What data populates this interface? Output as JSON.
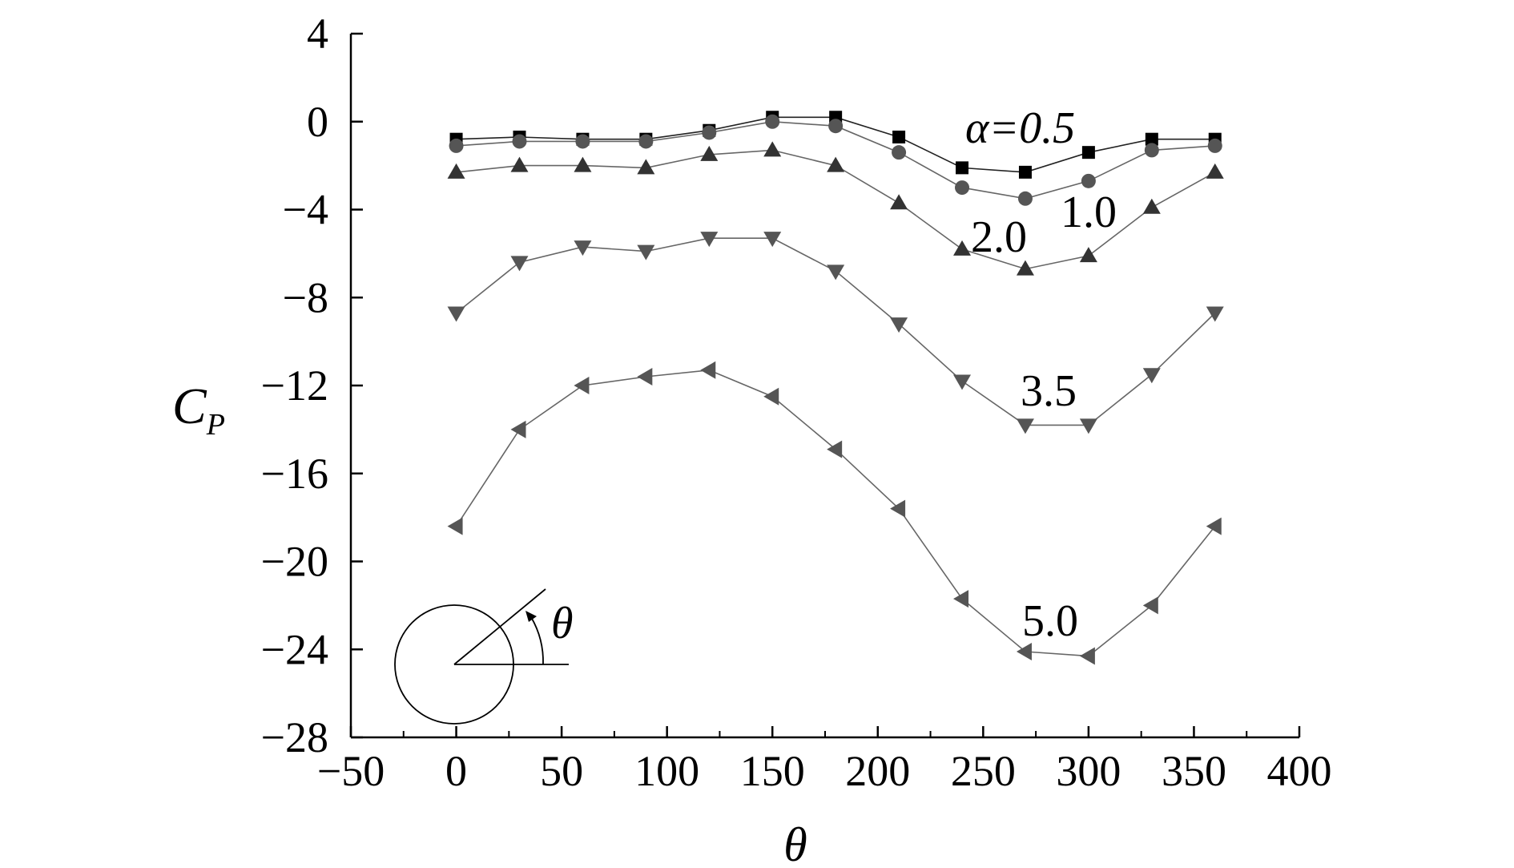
{
  "chart_data": {
    "type": "line",
    "xlabel": "θ",
    "ylabel": "C",
    "ylabel_sub": "P",
    "xlim": [
      -50,
      400
    ],
    "ylim": [
      -28,
      4
    ],
    "x_ticks": [
      -50,
      0,
      50,
      100,
      150,
      200,
      250,
      300,
      350,
      400
    ],
    "x_tick_labels": [
      "−50",
      "0",
      "50",
      "100",
      "150",
      "200",
      "250",
      "300",
      "350",
      "400"
    ],
    "y_ticks": [
      4,
      0,
      -4,
      -8,
      -12,
      -16,
      -20,
      -24,
      -28
    ],
    "y_tick_labels": [
      "4",
      "0",
      "−4",
      "−8",
      "−12",
      "−16",
      "−20",
      "−24",
      "−28"
    ],
    "grid": false,
    "legend": "none (inline curve labels)",
    "x": [
      0,
      30,
      60,
      90,
      120,
      150,
      180,
      210,
      240,
      270,
      300,
      330,
      360
    ],
    "series": [
      {
        "label": "α=0.5",
        "marker": "square",
        "color": "#000000",
        "values": [
          -0.8,
          -0.7,
          -0.8,
          -0.8,
          -0.4,
          0.2,
          0.2,
          -0.7,
          -2.1,
          -2.3,
          -1.4,
          -0.8,
          -0.8
        ]
      },
      {
        "label": "1.0",
        "marker": "circle",
        "color": "#555555",
        "values": [
          -1.1,
          -0.9,
          -0.9,
          -0.9,
          -0.5,
          0.0,
          -0.2,
          -1.4,
          -3.0,
          -3.5,
          -2.7,
          -1.3,
          -1.1
        ]
      },
      {
        "label": "2.0",
        "marker": "triangle-up",
        "color": "#333333",
        "values": [
          -2.3,
          -2.0,
          -2.0,
          -2.1,
          -1.5,
          -1.3,
          -2.0,
          -3.7,
          -5.8,
          -6.7,
          -6.1,
          -3.9,
          -2.3
        ]
      },
      {
        "label": "3.5",
        "marker": "triangle-down",
        "color": "#555555",
        "values": [
          -8.7,
          -6.4,
          -5.7,
          -5.9,
          -5.3,
          -5.3,
          -6.8,
          -9.2,
          -11.8,
          -13.8,
          -13.8,
          -11.5,
          -8.7
        ]
      },
      {
        "label": "5.0",
        "marker": "triangle-left",
        "color": "#555555",
        "values": [
          -18.4,
          -14.0,
          -12.0,
          -11.6,
          -11.3,
          -12.5,
          -14.9,
          -17.6,
          -21.7,
          -24.1,
          -24.3,
          -22.0,
          -18.4
        ]
      }
    ],
    "inset": {
      "label": "θ",
      "shape": "circle-with-angle"
    }
  }
}
